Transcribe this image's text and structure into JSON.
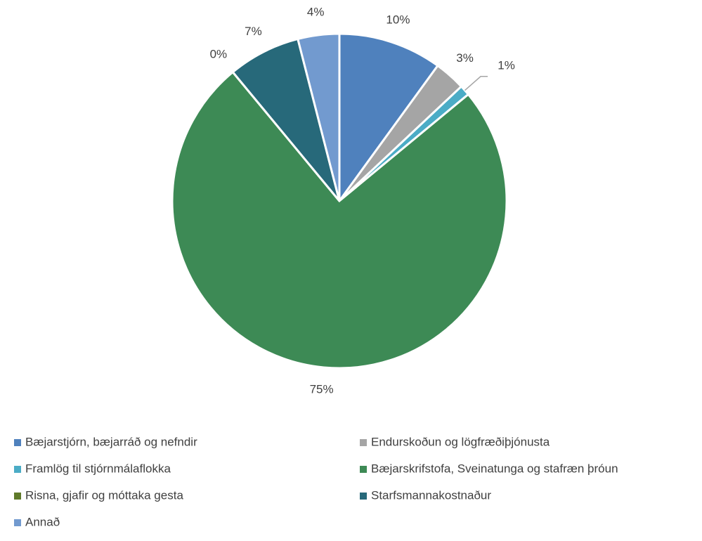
{
  "chart_data": {
    "type": "pie",
    "categories": [
      "Bæjarstjórn, bæjarráð og nefndir",
      "Endurskoðun og lögfræðiþjónusta",
      "Framlög til stjórnmálaflokka",
      "Bæjarskrifstofa, Sveinatunga og stafræn þróun",
      "Risna, gjafir og móttaka gesta",
      "Starfsmannakostnaður",
      "Annað"
    ],
    "values": [
      10,
      3,
      1,
      75,
      0,
      7,
      4
    ],
    "value_labels": [
      "10%",
      "3%",
      "1%",
      "75%",
      "0%",
      "7%",
      "4%"
    ],
    "colors": [
      "#4f81bd",
      "#a5a5a5",
      "#4bacc6",
      "#3d8a55",
      "#5f7a2a",
      "#27697a",
      "#729acf"
    ],
    "legend": "bottom"
  }
}
